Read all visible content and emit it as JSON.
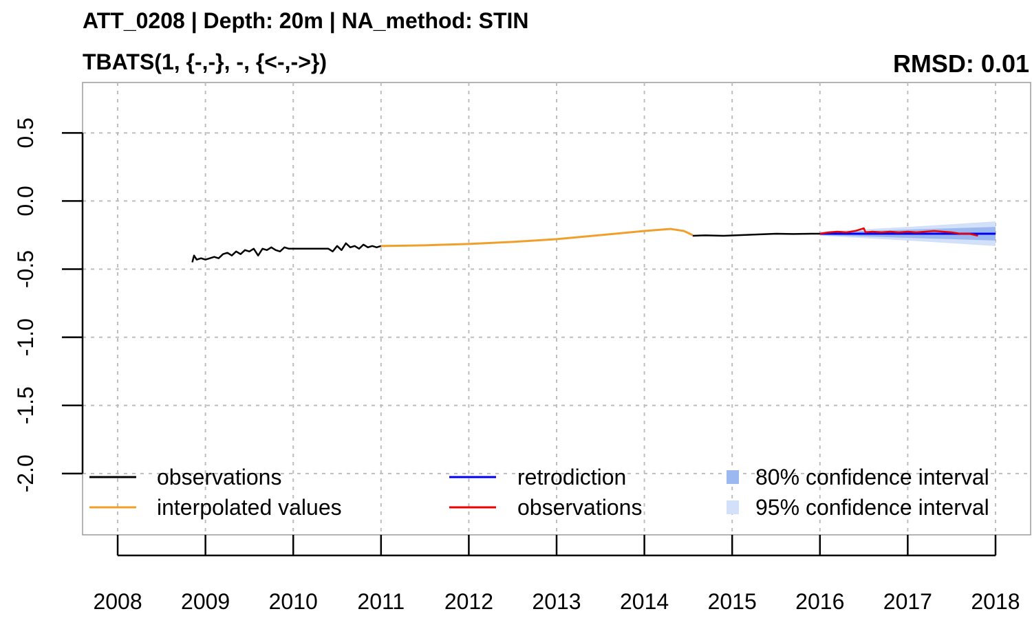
{
  "chart_data": {
    "type": "line",
    "title": "ATT_0208 | Depth: 20m | NA_method: STIN",
    "subtitle": "TBATS(1, {-,-}, -, {<-,->})",
    "rmsd_label": "RMSD: 0.01",
    "xlabel": "",
    "ylabel": "",
    "xlim": [
      2007.6,
      2018.4
    ],
    "ylim": [
      -2.45,
      0.87
    ],
    "grid": true,
    "x_ticks": [
      2008,
      2009,
      2010,
      2011,
      2012,
      2013,
      2014,
      2015,
      2016,
      2017,
      2018
    ],
    "x_tick_labels": [
      "2008",
      "2009",
      "2010",
      "2011",
      "2012",
      "2013",
      "2014",
      "2015",
      "2016",
      "2017",
      "2018"
    ],
    "y_ticks": [
      0.5,
      0.0,
      -0.5,
      -1.0,
      -1.5,
      -2.0
    ],
    "y_tick_labels": [
      "0.5",
      "0.0",
      "-0.5",
      "-1.0",
      "-1.5",
      "-2.0"
    ],
    "colors": {
      "observations": "#000000",
      "interpolated": "#f0a02a",
      "retrodiction": "#0000ee",
      "observations_test": "#ee0000",
      "ci80": "#9bb8f0",
      "ci95": "#d2e0fa",
      "grid": "#bdbdbd",
      "frame": "#9a9a9a"
    },
    "series": [
      {
        "name": "observations",
        "x": [
          2008.85,
          2008.87,
          2008.9,
          2008.95,
          2009.0,
          2009.05,
          2009.1,
          2009.15,
          2009.2,
          2009.25,
          2009.3,
          2009.35,
          2009.4,
          2009.45,
          2009.5,
          2009.55,
          2009.6,
          2009.65,
          2009.7,
          2009.75,
          2009.8,
          2009.85,
          2009.9,
          2009.95,
          2010.0,
          2010.1,
          2010.2,
          2010.3,
          2010.4,
          2010.45,
          2010.5,
          2010.55,
          2010.6,
          2010.65,
          2010.7,
          2010.75,
          2010.8,
          2010.85,
          2010.9,
          2010.95,
          2011.0
        ],
        "y": [
          -0.45,
          -0.4,
          -0.43,
          -0.42,
          -0.43,
          -0.42,
          -0.41,
          -0.42,
          -0.39,
          -0.38,
          -0.4,
          -0.37,
          -0.39,
          -0.36,
          -0.37,
          -0.35,
          -0.4,
          -0.35,
          -0.36,
          -0.34,
          -0.36,
          -0.37,
          -0.34,
          -0.35,
          -0.35,
          -0.35,
          -0.35,
          -0.35,
          -0.35,
          -0.37,
          -0.33,
          -0.36,
          -0.31,
          -0.34,
          -0.33,
          -0.35,
          -0.32,
          -0.34,
          -0.33,
          -0.34,
          -0.33
        ]
      },
      {
        "name": "interpolated values",
        "x": [
          2011.0,
          2011.5,
          2012.0,
          2012.5,
          2013.0,
          2013.5,
          2014.0,
          2014.3,
          2014.45,
          2014.55
        ],
        "y": [
          -0.33,
          -0.325,
          -0.315,
          -0.3,
          -0.28,
          -0.25,
          -0.22,
          -0.205,
          -0.22,
          -0.25
        ]
      },
      {
        "name": "observations",
        "x": [
          2014.55,
          2014.7,
          2014.9,
          2015.1,
          2015.3,
          2015.5,
          2015.7,
          2015.9,
          2016.05
        ],
        "y": [
          -0.255,
          -0.252,
          -0.255,
          -0.25,
          -0.245,
          -0.24,
          -0.242,
          -0.24,
          -0.24
        ]
      },
      {
        "name": "retrodiction",
        "x": [
          2016.0,
          2018.0
        ],
        "y": [
          -0.24,
          -0.24
        ]
      },
      {
        "name": "observations",
        "x": [
          2016.0,
          2016.1,
          2016.2,
          2016.3,
          2016.4,
          2016.5,
          2016.52,
          2016.6,
          2016.7,
          2016.8,
          2016.9,
          2017.0,
          2017.1,
          2017.2,
          2017.3,
          2017.4,
          2017.5,
          2017.6,
          2017.7,
          2017.8
        ],
        "y": [
          -0.24,
          -0.23,
          -0.225,
          -0.23,
          -0.22,
          -0.2,
          -0.23,
          -0.225,
          -0.23,
          -0.225,
          -0.23,
          -0.225,
          -0.23,
          -0.225,
          -0.22,
          -0.225,
          -0.23,
          -0.24,
          -0.24,
          -0.255
        ]
      }
    ],
    "ci80": {
      "x": [
        2016.0,
        2017.0,
        2018.0
      ],
      "upper": [
        -0.23,
        -0.21,
        -0.19
      ],
      "lower": [
        -0.25,
        -0.27,
        -0.29
      ]
    },
    "ci95": {
      "x": [
        2016.0,
        2017.0,
        2018.0
      ],
      "upper": [
        -0.225,
        -0.19,
        -0.15
      ],
      "lower": [
        -0.255,
        -0.29,
        -0.33
      ]
    },
    "legend_placement": "bottom",
    "legend": [
      {
        "label": "observations",
        "style": "line",
        "color": "#000000"
      },
      {
        "label": "interpolated values",
        "style": "line",
        "color": "#f0a02a"
      },
      {
        "label": "retrodiction",
        "style": "line",
        "color": "#0000ee"
      },
      {
        "label": "observations",
        "style": "line",
        "color": "#ee0000"
      },
      {
        "label": "80% confidence interval",
        "style": "box",
        "color": "#9bb8f0"
      },
      {
        "label": "95% confidence interval",
        "style": "box",
        "color": "#d2e0fa"
      }
    ]
  }
}
